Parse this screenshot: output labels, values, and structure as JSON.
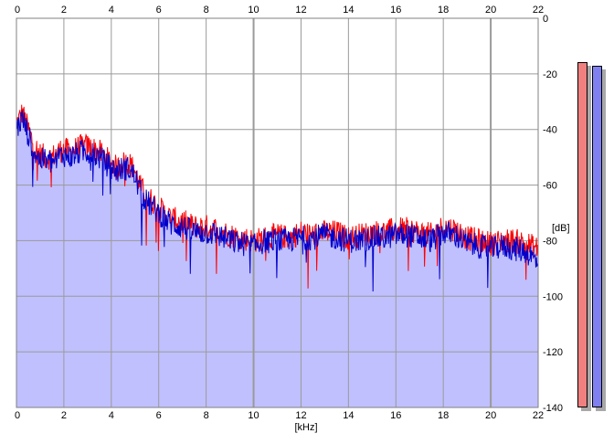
{
  "chart_data": {
    "type": "area",
    "xlabel": "[kHz]",
    "ylabel": "[dB]",
    "xlim": [
      0,
      22
    ],
    "ylim": [
      -140,
      0
    ],
    "x_ticks": [
      "0",
      "2",
      "4",
      "6",
      "8",
      "10",
      "12",
      "14",
      "16",
      "18",
      "20",
      "22"
    ],
    "y_ticks": [
      "0",
      "-20",
      "-40",
      "-60",
      "-80",
      "-100",
      "-120",
      "-140"
    ],
    "grid": true,
    "series": [
      {
        "color": "#ff0000",
        "x": [
          0,
          0.25,
          0.5,
          0.75,
          1,
          1.25,
          1.5,
          1.75,
          2,
          2.25,
          2.5,
          2.75,
          3,
          3.25,
          3.5,
          3.75,
          4,
          4.25,
          4.5,
          4.75,
          5,
          5.25,
          5.5,
          5.75,
          6,
          6.5,
          7,
          7.5,
          8,
          8.5,
          9,
          9.5,
          10,
          10.5,
          11,
          11.5,
          12,
          12.5,
          13,
          13.5,
          14,
          14.5,
          15,
          15.5,
          16,
          16.5,
          17,
          17.5,
          18,
          18.5,
          19,
          19.5,
          20,
          20.5,
          21,
          21.5,
          22
        ],
        "values": [
          -38,
          -34,
          -40,
          -46,
          -49,
          -50,
          -50,
          -48,
          -47,
          -48,
          -47,
          -46,
          -46,
          -47,
          -48,
          -50,
          -52,
          -54,
          -52,
          -52,
          -55,
          -61,
          -64,
          -66,
          -68,
          -72,
          -73,
          -75,
          -75,
          -76,
          -78,
          -79,
          -80,
          -79,
          -78,
          -79,
          -77,
          -78,
          -77,
          -77,
          -79,
          -78,
          -77,
          -77,
          -76,
          -76,
          -77,
          -78,
          -75,
          -76,
          -79,
          -80,
          -81,
          -80,
          -80,
          -81,
          -83
        ]
      },
      {
        "color": "#0000cc",
        "x": [
          0,
          0.25,
          0.5,
          0.75,
          1,
          1.25,
          1.5,
          1.75,
          2,
          2.25,
          2.5,
          2.75,
          3,
          3.25,
          3.5,
          3.75,
          4,
          4.25,
          4.5,
          4.75,
          5,
          5.25,
          5.5,
          5.75,
          6,
          6.5,
          7,
          7.5,
          8,
          8.5,
          9,
          9.5,
          10,
          10.5,
          11,
          11.5,
          12,
          12.5,
          13,
          13.5,
          14,
          14.5,
          15,
          15.5,
          16,
          16.5,
          17,
          17.5,
          18,
          18.5,
          19,
          19.5,
          20,
          20.5,
          21,
          21.5,
          22
        ],
        "values": [
          -40,
          -36,
          -42,
          -48,
          -51,
          -51,
          -52,
          -50,
          -49,
          -50,
          -49,
          -48,
          -48,
          -49,
          -50,
          -52,
          -54,
          -55,
          -54,
          -54,
          -57,
          -63,
          -66,
          -68,
          -70,
          -74,
          -75,
          -77,
          -77,
          -78,
          -80,
          -81,
          -82,
          -80,
          -80,
          -80,
          -79,
          -79,
          -78,
          -79,
          -80,
          -80,
          -79,
          -79,
          -78,
          -78,
          -79,
          -80,
          -77,
          -78,
          -81,
          -82,
          -83,
          -82,
          -83,
          -84,
          -88
        ]
      }
    ]
  },
  "meters": [
    {
      "color": "#f08080",
      "level": 0.92
    },
    {
      "color": "#8080f0",
      "level": 0.915
    }
  ]
}
